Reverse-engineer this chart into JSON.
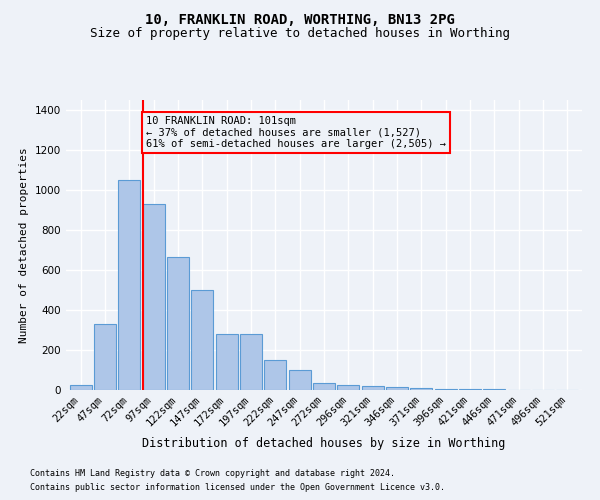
{
  "title1": "10, FRANKLIN ROAD, WORTHING, BN13 2PG",
  "title2": "Size of property relative to detached houses in Worthing",
  "xlabel": "Distribution of detached houses by size in Worthing",
  "ylabel": "Number of detached properties",
  "categories": [
    "22sqm",
    "47sqm",
    "72sqm",
    "97sqm",
    "122sqm",
    "147sqm",
    "172sqm",
    "197sqm",
    "222sqm",
    "247sqm",
    "272sqm",
    "296sqm",
    "321sqm",
    "346sqm",
    "371sqm",
    "396sqm",
    "421sqm",
    "446sqm",
    "471sqm",
    "496sqm",
    "521sqm"
  ],
  "values": [
    25,
    330,
    1050,
    930,
    665,
    500,
    280,
    280,
    150,
    100,
    35,
    25,
    20,
    15,
    10,
    5,
    3,
    3,
    2,
    2,
    2
  ],
  "bar_color": "#aec6e8",
  "bar_edge_color": "#5b9bd5",
  "vline_color": "red",
  "annotation_text": "10 FRANKLIN ROAD: 101sqm\n← 37% of detached houses are smaller (1,527)\n61% of semi-detached houses are larger (2,505) →",
  "annotation_box_color": "red",
  "ylim": [
    0,
    1450
  ],
  "yticks": [
    0,
    200,
    400,
    600,
    800,
    1000,
    1200,
    1400
  ],
  "footnote1": "Contains HM Land Registry data © Crown copyright and database right 2024.",
  "footnote2": "Contains public sector information licensed under the Open Government Licence v3.0.",
  "bg_color": "#eef2f8",
  "grid_color": "#ffffff",
  "title1_fontsize": 10,
  "title2_fontsize": 9,
  "xlabel_fontsize": 8.5,
  "ylabel_fontsize": 8,
  "tick_fontsize": 7.5,
  "footnote_fontsize": 6,
  "annot_fontsize": 7.5
}
